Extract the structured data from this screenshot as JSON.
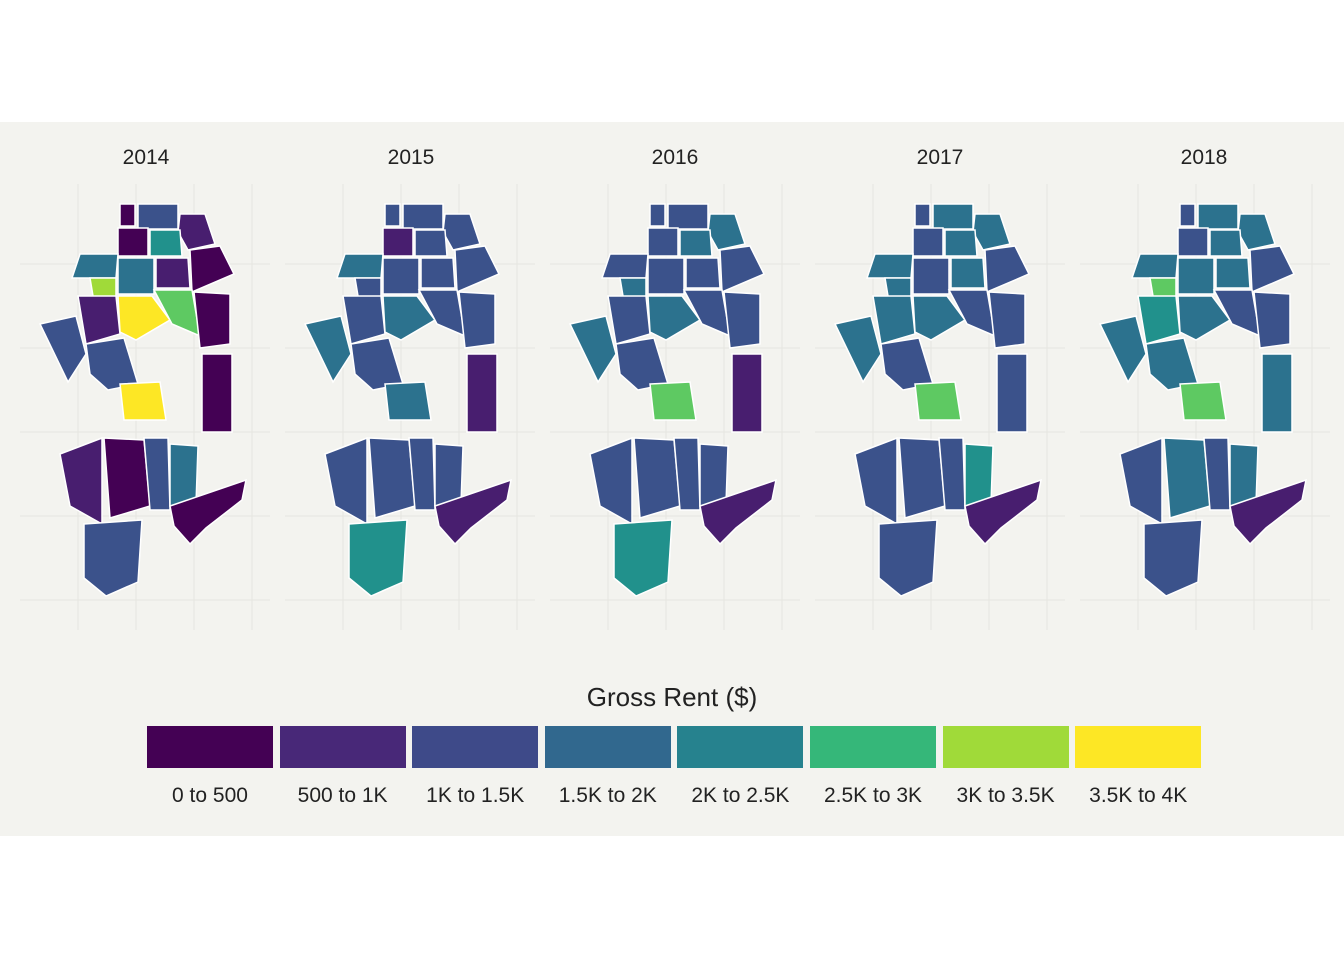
{
  "facets": [
    {
      "year": "2014",
      "colors": [
        "#440154",
        "#3b528b",
        "#481e6f",
        "#440154",
        "#21918c",
        "#2c728e",
        "#a0da39",
        "#2c728e",
        "#481e6f",
        "#440154",
        "#3b528b",
        "#481e6f",
        "#fde725",
        "#5ec962",
        "#440154",
        "#3b528b",
        "#440154",
        "#481e6f",
        "#440154",
        "#3b528b",
        "#2c728e",
        "#fde725",
        "#440154",
        "#3b528b"
      ]
    },
    {
      "year": "2015",
      "colors": [
        "#3b528b",
        "#3b528b",
        "#3b528b",
        "#481e6f",
        "#3b528b",
        "#2c728e",
        "#3b528b",
        "#3b528b",
        "#3b528b",
        "#3b528b",
        "#2c728e",
        "#3b528b",
        "#2c728e",
        "#3b528b",
        "#3b528b",
        "#3b528b",
        "#481e6f",
        "#3b528b",
        "#3b528b",
        "#3b528b",
        "#3b528b",
        "#2c728e",
        "#481e6f",
        "#21918c"
      ]
    },
    {
      "year": "2016",
      "colors": [
        "#3b528b",
        "#3b528b",
        "#2c728e",
        "#3b528b",
        "#2c728e",
        "#3b528b",
        "#2c728e",
        "#3b528b",
        "#3b528b",
        "#3b528b",
        "#2c728e",
        "#3b528b",
        "#2c728e",
        "#3b528b",
        "#3b528b",
        "#3b528b",
        "#481e6f",
        "#3b528b",
        "#3b528b",
        "#3b528b",
        "#3b528b",
        "#5ec962",
        "#481e6f",
        "#21918c"
      ]
    },
    {
      "year": "2017",
      "colors": [
        "#3b528b",
        "#2c728e",
        "#2c728e",
        "#3b528b",
        "#2c728e",
        "#2c728e",
        "#2c728e",
        "#3b528b",
        "#2c728e",
        "#3b528b",
        "#2c728e",
        "#2c728e",
        "#2c728e",
        "#3b528b",
        "#3b528b",
        "#3b528b",
        "#3b528b",
        "#3b528b",
        "#3b528b",
        "#3b528b",
        "#21918c",
        "#5ec962",
        "#481e6f",
        "#3b528b"
      ]
    },
    {
      "year": "2018",
      "colors": [
        "#3b528b",
        "#2c728e",
        "#2c728e",
        "#3b528b",
        "#2c728e",
        "#2c728e",
        "#5ec962",
        "#2c728e",
        "#2c728e",
        "#3b528b",
        "#2c728e",
        "#21918c",
        "#2c728e",
        "#3b528b",
        "#3b528b",
        "#2c728e",
        "#2c728e",
        "#3b528b",
        "#2c728e",
        "#3b528b",
        "#2c728e",
        "#5ec962",
        "#481e6f",
        "#3b528b"
      ]
    }
  ],
  "legend": {
    "title": "Gross Rent ($)",
    "items": [
      {
        "label": "0 to 500",
        "color": "#440154"
      },
      {
        "label": "500 to 1K",
        "color": "#482878"
      },
      {
        "label": "1K to 1.5K",
        "color": "#3e4a89"
      },
      {
        "label": "1.5K to 2K",
        "color": "#31688e"
      },
      {
        "label": "2K to 2.5K",
        "color": "#26828e"
      },
      {
        "label": "2.5K to 3K",
        "color": "#35b779"
      },
      {
        "label": "3K to 3.5K",
        "color": "#a0da39"
      },
      {
        "label": "3.5K to 4K",
        "color": "#fde725"
      }
    ]
  }
}
